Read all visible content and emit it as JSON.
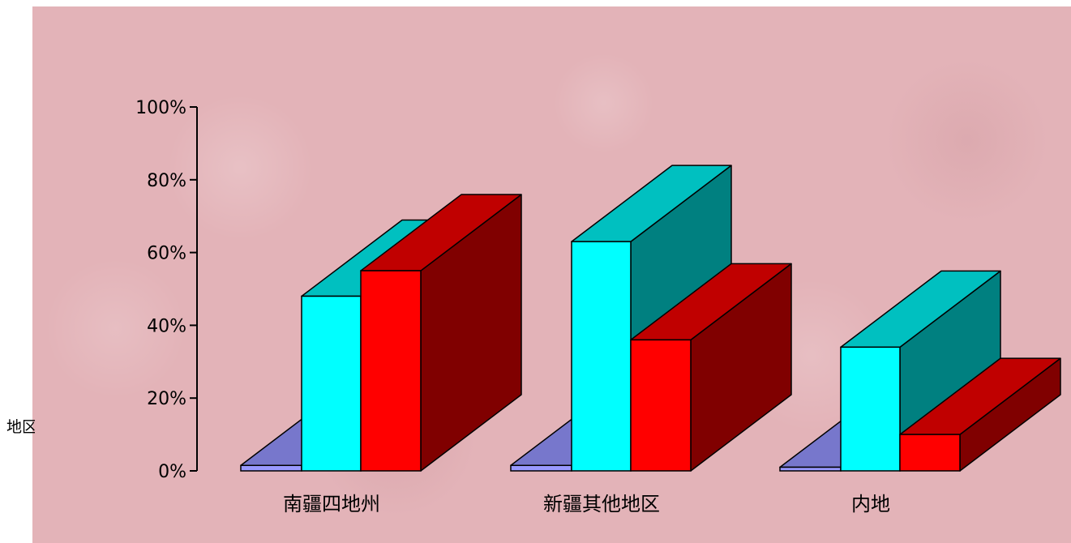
{
  "side_label": "地区",
  "chart_data": {
    "type": "bar",
    "style": "3d-grouped",
    "categories": [
      "南疆四地州",
      "新疆其他地区",
      "内地"
    ],
    "series": [
      {
        "values": [
          1.5,
          1.5,
          1
        ],
        "color": "#9999ff",
        "top_color": "#7777cc",
        "side_color": "#5555aa"
      },
      {
        "values": [
          48,
          63,
          34
        ],
        "color": "#00ffff",
        "top_color": "#00c0c0",
        "side_color": "#008080"
      },
      {
        "values": [
          55,
          36,
          10
        ],
        "color": "#ff0000",
        "top_color": "#c00000",
        "side_color": "#800000"
      }
    ],
    "ylim": [
      0,
      100
    ],
    "yticks": [
      "0%",
      "20%",
      "40%",
      "60%",
      "80%",
      "100%"
    ],
    "ytick_values": [
      0,
      20,
      40,
      60,
      80,
      100
    ],
    "grid": false,
    "legend": "none"
  }
}
